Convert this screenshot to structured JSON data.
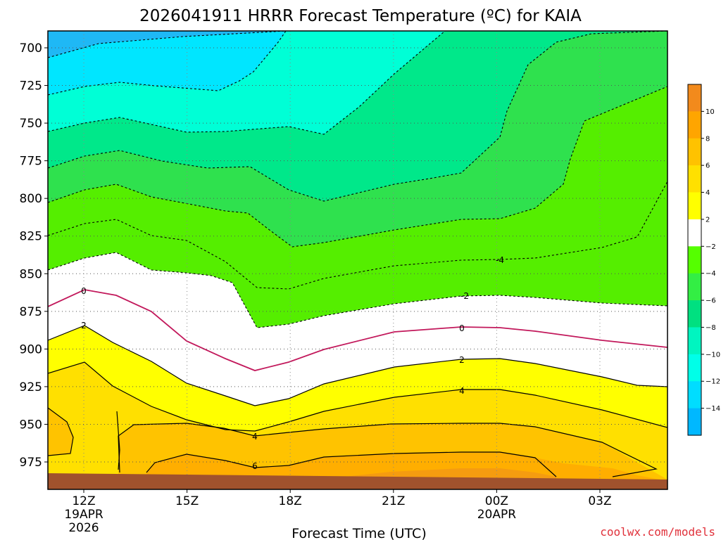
{
  "title": "2026041911 HRRR Forecast Temperature (ºC) for KAIA",
  "credit": "coolwx.com/models",
  "chart_data": {
    "type": "contour",
    "title": "2026041911 HRRR Forecast Temperature (ºC) for KAIA",
    "xlabel": "Forecast Time (UTC)",
    "ylabel": "",
    "y_scale": "pressure (hPa), inverted",
    "ylim": [
      990,
      690
    ],
    "grid": true,
    "x_ticks": [
      {
        "label": "12Z",
        "sublabels": [
          "19APR",
          "2026"
        ],
        "hour": 0
      },
      {
        "label": "15Z",
        "sublabels": [],
        "hour": 3
      },
      {
        "label": "18Z",
        "sublabels": [],
        "hour": 6
      },
      {
        "label": "21Z",
        "sublabels": [],
        "hour": 9
      },
      {
        "label": "00Z",
        "sublabels": [
          "20APR"
        ],
        "hour": 12
      },
      {
        "label": "03Z",
        "sublabels": [],
        "hour": 15
      }
    ],
    "y_ticks": [
      700,
      725,
      750,
      775,
      800,
      825,
      850,
      875,
      900,
      925,
      950,
      975
    ],
    "colorbar": {
      "labels": [
        "10",
        "8",
        "6",
        "4",
        "2",
        "−2",
        "−4",
        "−6",
        "−8",
        "−10",
        "−12",
        "−14"
      ],
      "colors": [
        "#f28a1c",
        "#ffa500",
        "#ffc200",
        "#ffe000",
        "#ffff00",
        "#ffffff",
        "#55ff00",
        "#33ee44",
        "#00e080",
        "#00f5c0",
        "#00ffe8",
        "#00ddff",
        "#00b8ff"
      ]
    },
    "contour_labels": [
      "-4",
      "-2",
      "0",
      "2",
      "4",
      "0",
      "2",
      "4",
      "6"
    ],
    "fill_colors": {
      "c_m14": "#1fb8f5",
      "c_m12": "#00e6ff",
      "c_m10": "#00ffd6",
      "c_m8": "#00e88a",
      "c_m6": "#2fe14e",
      "c_m4": "#55ee00",
      "c_m2": "#ffffff",
      "c_p2": "#ffff00",
      "c_p4": "#ffe000",
      "c_p6": "#ffc300",
      "c_p8": "#ffae00",
      "c_p10": "#f59c10",
      "ground": "#a0522d",
      "zero_line": "#c2185b"
    }
  }
}
